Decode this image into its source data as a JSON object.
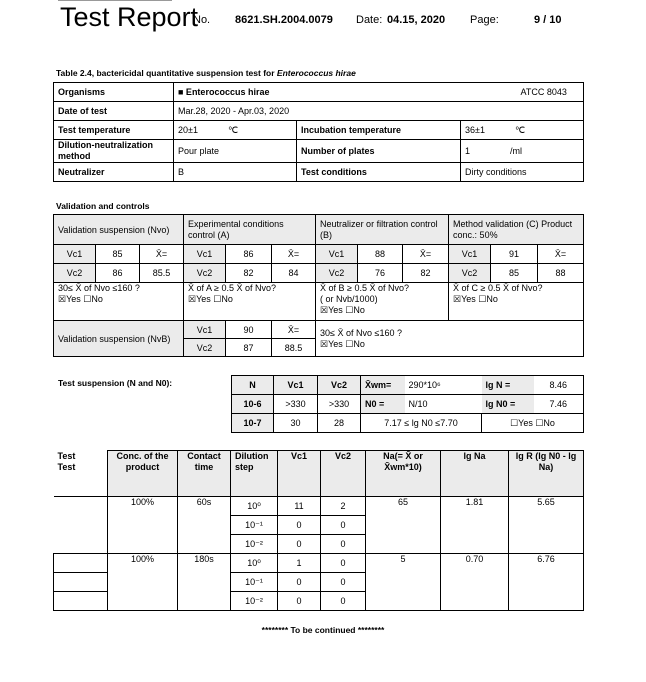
{
  "header": {
    "title": "Test Report",
    "no_label": "No.",
    "no_value": "8621.SH.2004.0079",
    "date_label": "Date:",
    "date_value": "04.15, 2020",
    "page_label": "Page:",
    "page_value": "9 / 10"
  },
  "table1": {
    "caption": "Table 2.4, bactericidal quantitative suspension test for ",
    "caption_italic": "Enterococcus hirae",
    "organisms_label": "Organisms",
    "organisms_value": "■ Enterococcus hirae",
    "organisms_strain": "ATCC 8043",
    "date_label": "Date of test",
    "date_value": "Mar.28, 2020 - Apr.03, 2020",
    "temp_label": "Test temperature",
    "temp_value": "20±1",
    "temp_unit": "℃",
    "incub_label": "Incubation temperature",
    "incub_value": "36±1",
    "incub_unit": "℃",
    "method_label": "Dilution-neutralization method",
    "method_value": "Pour plate",
    "plates_label": "Number of plates",
    "plates_value": "1",
    "plates_unit": "/ml",
    "neutralizer_label": "Neutralizer",
    "neutralizer_value": "B",
    "cond_label": "Test conditions",
    "cond_value": "Dirty conditions"
  },
  "validation": {
    "heading": "Validation and controls",
    "nvo_label": "Validation suspension (Nvo)",
    "a_label": "Experimental conditions control (A)",
    "b_label": "Neutralizer or filtration control (B)",
    "c_label": "Method validation (C) Product conc.: 50%",
    "vc1": "Vc1",
    "vc2": "Vc2",
    "xbar": "X̄=",
    "nvo": [
      "85",
      "86",
      "85.5"
    ],
    "a": [
      "86",
      "82",
      "84"
    ],
    "b": [
      "88",
      "76",
      "82"
    ],
    "c": [
      "91",
      "85",
      "88"
    ],
    "nvo_check": "30≤ X̄ of Nvo ≤160 ?",
    "a_check": "X̄ of A ≥ 0.5 X̄ of Nvo?",
    "b_check": "X̄ of B ≥ 0.5 X̄ of Nvo?",
    "b_check2": "( or Nvb/1000)",
    "c_check": "X̄ of C ≥ 0.5 X̄ of Nvo?",
    "yesno": "☒Yes ☐No",
    "nvb_label": "Validation suspension (NvB)",
    "nvb": [
      "90",
      "87",
      "88.5"
    ],
    "nvb_check": "30≤ X̄ of Nvo ≤160 ?"
  },
  "suspension": {
    "label": "Test suspension (N and N0):",
    "headers": [
      "N",
      "Vc1",
      "Vc2"
    ],
    "rows": [
      [
        "10-6",
        ">330",
        ">330"
      ],
      [
        "10-7",
        "30",
        "28"
      ]
    ],
    "xwm_label": "X̄wm=",
    "xwm_value": "290*10⁶",
    "lgn_label": "lg N =",
    "lgn_value": "8.46",
    "n0_label": "N0 =",
    "n0_value": "N/10",
    "lgn0_label": "lg N0 =",
    "lgn0_value": "7.46",
    "range": "7.17 ≤ lg N0 ≤7.70",
    "yesno": "☐Yes ☐No"
  },
  "results": {
    "headers": [
      "Test\nTest",
      "Conc. of the product",
      "Contact time",
      "Dilution step",
      "Vc1",
      "Vc2",
      "Na(= X̄ or X̄wm*10)",
      "lg Na",
      "lg R (lg N0 - lg Na)"
    ],
    "groups": [
      {
        "conc": "100%",
        "time": "60s",
        "na": "65",
        "lgna": "1.81",
        "lgr": "5.65",
        "rows": [
          [
            "10⁰",
            "11",
            "2"
          ],
          [
            "10⁻¹",
            "0",
            "0"
          ],
          [
            "10⁻²",
            "0",
            "0"
          ]
        ]
      },
      {
        "conc": "100%",
        "time": "180s",
        "na": "5",
        "lgna": "0.70",
        "lgr": "6.76",
        "rows": [
          [
            "10⁰",
            "1",
            "0"
          ],
          [
            "10⁻¹",
            "0",
            "0"
          ],
          [
            "10⁻²",
            "0",
            "0"
          ]
        ]
      }
    ]
  },
  "footer": "******** To be continued ********"
}
